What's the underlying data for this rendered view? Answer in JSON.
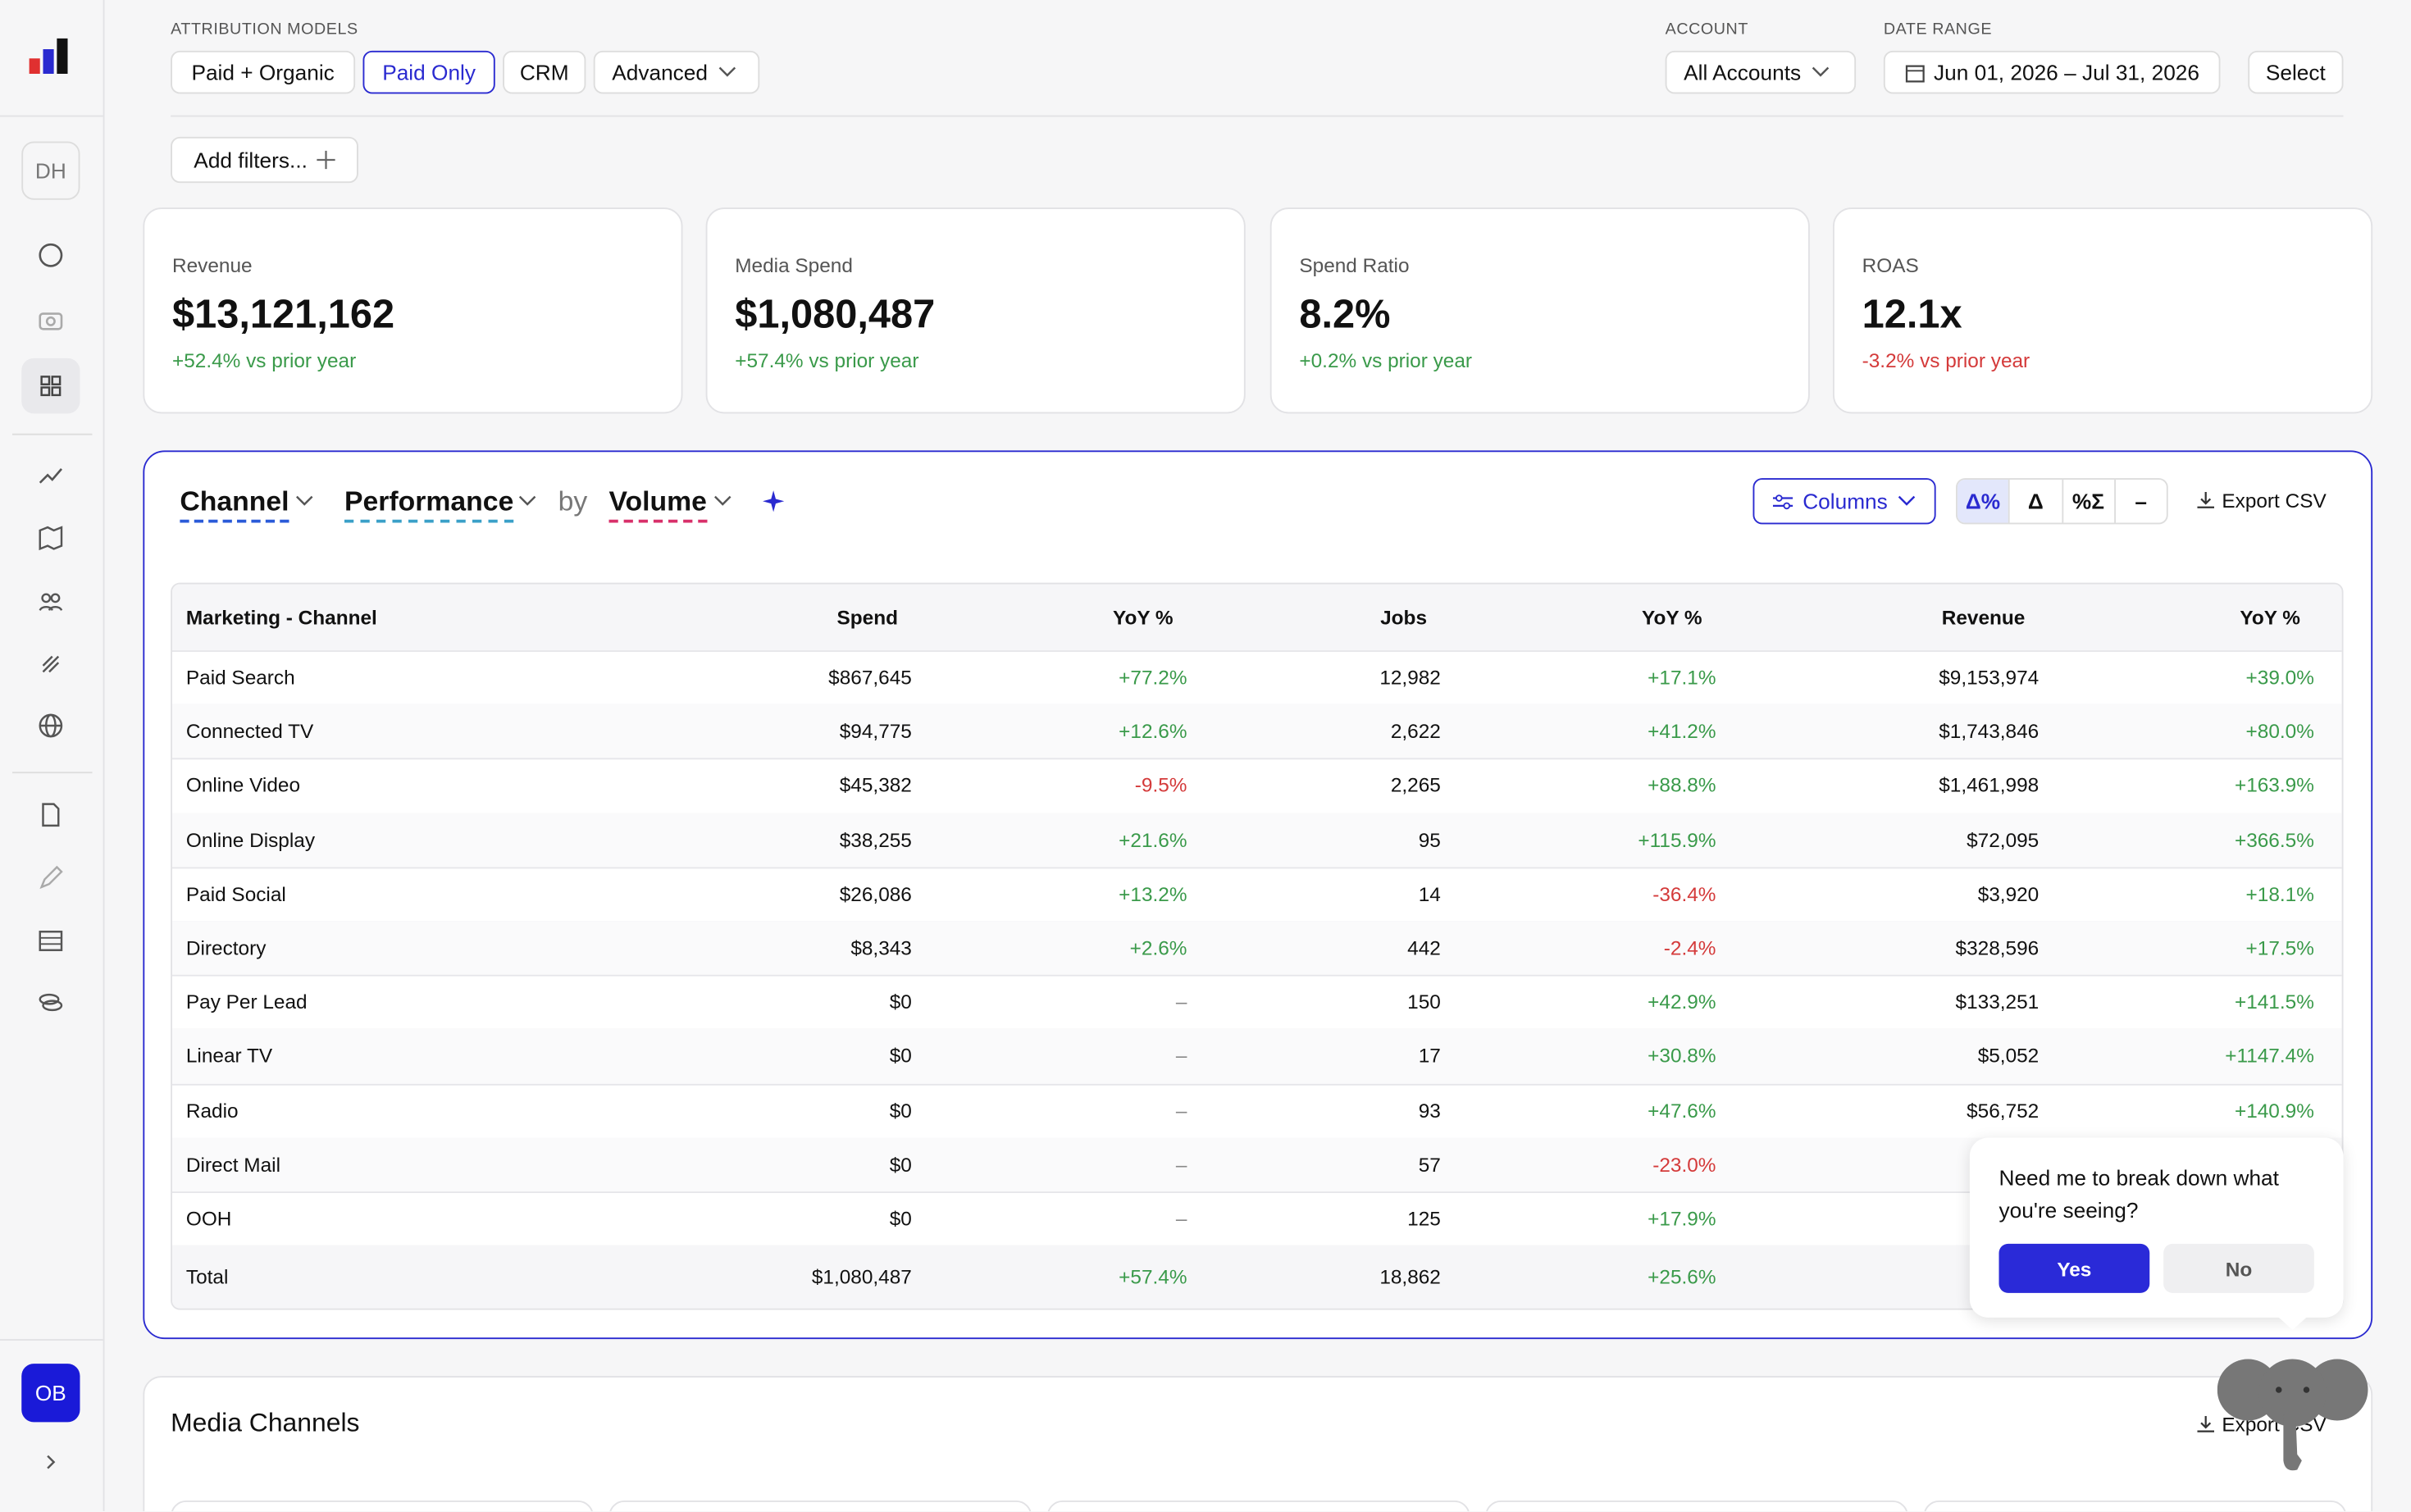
{
  "sidebar": {
    "user_initials": "DH",
    "account_initials": "OB"
  },
  "filters": {
    "attribution_label": "ATTRIBUTION MODELS",
    "models": [
      "Paid + Organic",
      "Paid Only",
      "CRM",
      "Advanced"
    ],
    "account_label": "ACCOUNT",
    "account": "All Accounts",
    "date_range_label": "DATE RANGE",
    "date_range": "Jun 01, 2026 – Jul 31, 2026",
    "select": "Select",
    "add_filters": "Add filters..."
  },
  "kpis": [
    {
      "label": "Revenue",
      "value": "$13,121,162",
      "change": "+52.4% vs prior year"
    },
    {
      "label": "Media Spend",
      "value": "$1,080,487",
      "change": "+57.4% vs prior year"
    },
    {
      "label": "Spend Ratio",
      "value": "8.2%",
      "change": "+0.2% vs prior year"
    },
    {
      "label": "ROAS",
      "value": "12.1x",
      "change": "-3.2% vs prior year"
    }
  ],
  "report": {
    "dimension": "Channel",
    "metric_group": "Performance",
    "by": "by",
    "breakdown": "Volume",
    "columns_button": "Columns",
    "modes": [
      "Δ%",
      "Δ",
      "%Σ",
      "–"
    ],
    "export": "Export CSV",
    "table": {
      "headers": [
        "Marketing - Channel",
        "Spend",
        "YoY %",
        "Jobs",
        "YoY %",
        "Revenue",
        "YoY %"
      ],
      "rows": [
        [
          "Paid Search",
          "$867,645",
          "+77.2%",
          "12,982",
          "+17.1%",
          "$9,153,974",
          "+39.0%"
        ],
        [
          "Connected TV",
          "$94,775",
          "+12.6%",
          "2,622",
          "+41.2%",
          "$1,743,846",
          "+80.0%"
        ],
        [
          "Online Video",
          "$45,382",
          "-9.5%",
          "2,265",
          "+88.8%",
          "$1,461,998",
          "+163.9%"
        ],
        [
          "Online Display",
          "$38,255",
          "+21.6%",
          "95",
          "+115.9%",
          "$72,095",
          "+366.5%"
        ],
        [
          "Paid Social",
          "$26,086",
          "+13.2%",
          "14",
          "-36.4%",
          "$3,920",
          "+18.1%"
        ],
        [
          "Directory",
          "$8,343",
          "+2.6%",
          "442",
          "-2.4%",
          "$328,596",
          "+17.5%"
        ],
        [
          "Pay Per Lead",
          "$0",
          "–",
          "150",
          "+42.9%",
          "$133,251",
          "+141.5%"
        ],
        [
          "Linear TV",
          "$0",
          "–",
          "17",
          "+30.8%",
          "$5,052",
          "+1147.4%"
        ],
        [
          "Radio",
          "$0",
          "–",
          "93",
          "+47.6%",
          "$56,752",
          "+140.9%"
        ],
        [
          "Direct Mail",
          "$0",
          "–",
          "57",
          "-23.0%"
        ],
        [
          "OOH",
          "$0",
          "–",
          "125",
          "+17.9%"
        ]
      ],
      "total": [
        "Total",
        "$1,080,487",
        "+57.4%",
        "18,862",
        "+25.6%"
      ]
    }
  },
  "assistant": {
    "question": "Need me to break down what you're seeing?",
    "yes": "Yes",
    "no": "No"
  },
  "media_channels": {
    "title": "Media Channels",
    "export": "Export CSV"
  }
}
